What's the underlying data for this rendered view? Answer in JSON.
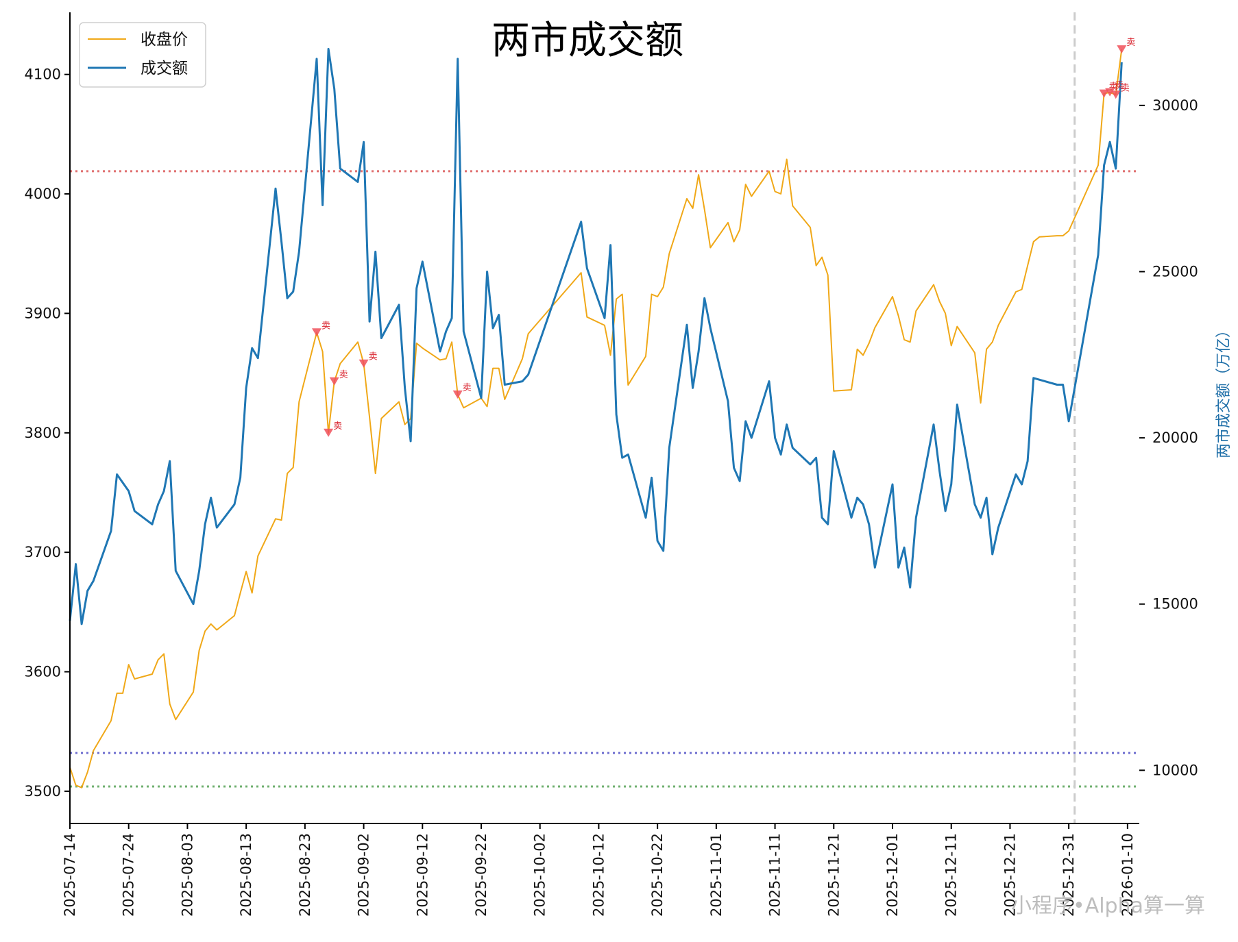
{
  "chart_data": {
    "type": "line",
    "title": "两市成交额",
    "ylabel_right": "两市成交额（万亿）",
    "watermark": "小程序•Alpha算一算",
    "legend": {
      "position": "top-left",
      "items": [
        {
          "label": "收盘价",
          "color": "#f0a818"
        },
        {
          "label": "成交额",
          "color": "#1f77b4"
        }
      ]
    },
    "x_range": [
      "2025-07-14",
      "2026-01-12"
    ],
    "x_ticks": [
      "2025-07-14",
      "2025-07-24",
      "2025-08-03",
      "2025-08-13",
      "2025-08-23",
      "2025-09-02",
      "2025-09-12",
      "2025-09-22",
      "2025-10-02",
      "2025-10-12",
      "2025-10-22",
      "2025-11-01",
      "2025-11-11",
      "2025-11-21",
      "2025-12-01",
      "2025-12-11",
      "2025-12-21",
      "2025-12-31",
      "2026-01-10"
    ],
    "y_left": {
      "range": [
        3473,
        4152
      ],
      "ticks": [
        3500,
        3600,
        3700,
        3800,
        3900,
        4000,
        4100
      ]
    },
    "y_right": {
      "range": [
        8400,
        32800
      ],
      "ticks": [
        10000,
        15000,
        20000,
        25000,
        30000
      ]
    },
    "reference_lines": [
      {
        "axis": "left",
        "value": 4019,
        "color": "#e07070",
        "style": "dotted"
      },
      {
        "axis": "left",
        "value": 3532,
        "color": "#7070d0",
        "style": "dotted"
      },
      {
        "axis": "left",
        "value": 3504,
        "color": "#70b070",
        "style": "dotted"
      },
      {
        "axis": "x",
        "value": "2026-01-01",
        "color": "#cccccc",
        "style": "dashed"
      }
    ],
    "series": [
      {
        "name": "收盘价",
        "axis": "left",
        "color": "#f0a818",
        "points": [
          [
            "2025-07-14",
            3520
          ],
          [
            "2025-07-15",
            3505
          ],
          [
            "2025-07-16",
            3503
          ],
          [
            "2025-07-17",
            3516
          ],
          [
            "2025-07-18",
            3534
          ],
          [
            "2025-07-21",
            3559
          ],
          [
            "2025-07-22",
            3582
          ],
          [
            "2025-07-23",
            3582
          ],
          [
            "2025-07-24",
            3606
          ],
          [
            "2025-07-25",
            3594
          ],
          [
            "2025-07-28",
            3598
          ],
          [
            "2025-07-29",
            3610
          ],
          [
            "2025-07-30",
            3615
          ],
          [
            "2025-07-31",
            3573
          ],
          [
            "2025-08-01",
            3560
          ],
          [
            "2025-08-04",
            3583
          ],
          [
            "2025-08-05",
            3618
          ],
          [
            "2025-08-06",
            3634
          ],
          [
            "2025-08-07",
            3640
          ],
          [
            "2025-08-08",
            3635
          ],
          [
            "2025-08-11",
            3647
          ],
          [
            "2025-08-12",
            3666
          ],
          [
            "2025-08-13",
            3684
          ],
          [
            "2025-08-14",
            3666
          ],
          [
            "2025-08-15",
            3697
          ],
          [
            "2025-08-18",
            3728
          ],
          [
            "2025-08-19",
            3727
          ],
          [
            "2025-08-20",
            3766
          ],
          [
            "2025-08-21",
            3771
          ],
          [
            "2025-08-22",
            3826
          ],
          [
            "2025-08-25",
            3884
          ],
          [
            "2025-08-26",
            3868
          ],
          [
            "2025-08-27",
            3800
          ],
          [
            "2025-08-28",
            3843
          ],
          [
            "2025-08-29",
            3858
          ],
          [
            "2025-09-01",
            3876
          ],
          [
            "2025-09-02",
            3858
          ],
          [
            "2025-09-03",
            3813
          ],
          [
            "2025-09-04",
            3766
          ],
          [
            "2025-09-05",
            3812
          ],
          [
            "2025-09-08",
            3826
          ],
          [
            "2025-09-09",
            3807
          ],
          [
            "2025-09-10",
            3812
          ],
          [
            "2025-09-11",
            3875
          ],
          [
            "2025-09-12",
            3871
          ],
          [
            "2025-09-15",
            3861
          ],
          [
            "2025-09-16",
            3862
          ],
          [
            "2025-09-17",
            3876
          ],
          [
            "2025-09-18",
            3832
          ],
          [
            "2025-09-19",
            3821
          ],
          [
            "2025-09-22",
            3829
          ],
          [
            "2025-09-23",
            3822
          ],
          [
            "2025-09-24",
            3854
          ],
          [
            "2025-09-25",
            3854
          ],
          [
            "2025-09-26",
            3828
          ],
          [
            "2025-09-29",
            3862
          ],
          [
            "2025-09-30",
            3883
          ],
          [
            "2025-10-09",
            3934
          ],
          [
            "2025-10-10",
            3897
          ],
          [
            "2025-10-13",
            3890
          ],
          [
            "2025-10-14",
            3865
          ],
          [
            "2025-10-15",
            3912
          ],
          [
            "2025-10-16",
            3916
          ],
          [
            "2025-10-17",
            3840
          ],
          [
            "2025-10-20",
            3864
          ],
          [
            "2025-10-21",
            3916
          ],
          [
            "2025-10-22",
            3914
          ],
          [
            "2025-10-23",
            3922
          ],
          [
            "2025-10-24",
            3950
          ],
          [
            "2025-10-27",
            3996
          ],
          [
            "2025-10-28",
            3988
          ],
          [
            "2025-10-29",
            4016
          ],
          [
            "2025-10-30",
            3987
          ],
          [
            "2025-10-31",
            3955
          ],
          [
            "2025-11-03",
            3976
          ],
          [
            "2025-11-04",
            3960
          ],
          [
            "2025-11-05",
            3970
          ],
          [
            "2025-11-06",
            4008
          ],
          [
            "2025-11-07",
            3998
          ],
          [
            "2025-11-10",
            4019
          ],
          [
            "2025-11-11",
            4002
          ],
          [
            "2025-11-12",
            4000
          ],
          [
            "2025-11-13",
            4029
          ],
          [
            "2025-11-14",
            3990
          ],
          [
            "2025-11-17",
            3972
          ],
          [
            "2025-11-18",
            3940
          ],
          [
            "2025-11-19",
            3947
          ],
          [
            "2025-11-20",
            3932
          ],
          [
            "2025-11-21",
            3835
          ],
          [
            "2025-11-24",
            3836
          ],
          [
            "2025-11-25",
            3870
          ],
          [
            "2025-11-26",
            3865
          ],
          [
            "2025-11-27",
            3875
          ],
          [
            "2025-11-28",
            3888
          ],
          [
            "2025-12-01",
            3914
          ],
          [
            "2025-12-02",
            3898
          ],
          [
            "2025-12-03",
            3878
          ],
          [
            "2025-12-04",
            3876
          ],
          [
            "2025-12-05",
            3902
          ],
          [
            "2025-12-08",
            3924
          ],
          [
            "2025-12-09",
            3910
          ],
          [
            "2025-12-10",
            3900
          ],
          [
            "2025-12-11",
            3873
          ],
          [
            "2025-12-12",
            3889
          ],
          [
            "2025-12-15",
            3867
          ],
          [
            "2025-12-16",
            3825
          ],
          [
            "2025-12-17",
            3870
          ],
          [
            "2025-12-18",
            3876
          ],
          [
            "2025-12-19",
            3890
          ],
          [
            "2025-12-22",
            3918
          ],
          [
            "2025-12-23",
            3920
          ],
          [
            "2025-12-24",
            3940
          ],
          [
            "2025-12-25",
            3960
          ],
          [
            "2025-12-26",
            3964
          ],
          [
            "2025-12-29",
            3965
          ],
          [
            "2025-12-30",
            3965
          ],
          [
            "2025-12-31",
            3969
          ],
          [
            "2026-01-05",
            4024
          ],
          [
            "2026-01-06",
            4084
          ],
          [
            "2026-01-07",
            4085
          ],
          [
            "2026-01-08",
            4083
          ],
          [
            "2026-01-09",
            4121
          ]
        ]
      },
      {
        "name": "成交额",
        "axis": "right",
        "color": "#1f77b4",
        "points": [
          [
            "2025-07-14",
            14500
          ],
          [
            "2025-07-15",
            16200
          ],
          [
            "2025-07-16",
            14400
          ],
          [
            "2025-07-17",
            15400
          ],
          [
            "2025-07-18",
            15700
          ],
          [
            "2025-07-21",
            17200
          ],
          [
            "2025-07-22",
            18900
          ],
          [
            "2025-07-24",
            18400
          ],
          [
            "2025-07-25",
            17800
          ],
          [
            "2025-07-28",
            17400
          ],
          [
            "2025-07-29",
            18000
          ],
          [
            "2025-07-30",
            18400
          ],
          [
            "2025-07-31",
            19300
          ],
          [
            "2025-08-01",
            16000
          ],
          [
            "2025-08-04",
            15000
          ],
          [
            "2025-08-05",
            16000
          ],
          [
            "2025-08-06",
            17400
          ],
          [
            "2025-08-07",
            18200
          ],
          [
            "2025-08-08",
            17300
          ],
          [
            "2025-08-11",
            18000
          ],
          [
            "2025-08-12",
            18800
          ],
          [
            "2025-08-13",
            21500
          ],
          [
            "2025-08-14",
            22700
          ],
          [
            "2025-08-15",
            22400
          ],
          [
            "2025-08-18",
            27500
          ],
          [
            "2025-08-19",
            25900
          ],
          [
            "2025-08-20",
            24200
          ],
          [
            "2025-08-21",
            24400
          ],
          [
            "2025-08-22",
            25600
          ],
          [
            "2025-08-25",
            31400
          ],
          [
            "2025-08-26",
            27000
          ],
          [
            "2025-08-27",
            31700
          ],
          [
            "2025-08-28",
            30500
          ],
          [
            "2025-08-29",
            28100
          ],
          [
            "2025-09-01",
            27700
          ],
          [
            "2025-09-02",
            28900
          ],
          [
            "2025-09-03",
            23500
          ],
          [
            "2025-09-04",
            25600
          ],
          [
            "2025-09-05",
            23000
          ],
          [
            "2025-09-08",
            24000
          ],
          [
            "2025-09-09",
            21500
          ],
          [
            "2025-09-10",
            19900
          ],
          [
            "2025-09-11",
            24500
          ],
          [
            "2025-09-12",
            25300
          ],
          [
            "2025-09-15",
            22600
          ],
          [
            "2025-09-16",
            23200
          ],
          [
            "2025-09-17",
            23600
          ],
          [
            "2025-09-18",
            31400
          ],
          [
            "2025-09-19",
            23200
          ],
          [
            "2025-09-22",
            21200
          ],
          [
            "2025-09-23",
            25000
          ],
          [
            "2025-09-24",
            23300
          ],
          [
            "2025-09-25",
            23700
          ],
          [
            "2025-09-26",
            21600
          ],
          [
            "2025-09-29",
            21700
          ],
          [
            "2025-09-30",
            21900
          ],
          [
            "2025-10-09",
            26500
          ],
          [
            "2025-10-10",
            25100
          ],
          [
            "2025-10-13",
            23600
          ],
          [
            "2025-10-14",
            25800
          ],
          [
            "2025-10-15",
            20700
          ],
          [
            "2025-10-16",
            19400
          ],
          [
            "2025-10-17",
            19500
          ],
          [
            "2025-10-20",
            17600
          ],
          [
            "2025-10-21",
            18800
          ],
          [
            "2025-10-22",
            16900
          ],
          [
            "2025-10-23",
            16600
          ],
          [
            "2025-10-24",
            19700
          ],
          [
            "2025-10-27",
            23400
          ],
          [
            "2025-10-28",
            21500
          ],
          [
            "2025-10-29",
            22600
          ],
          [
            "2025-10-30",
            24200
          ],
          [
            "2025-10-31",
            23300
          ],
          [
            "2025-11-03",
            21100
          ],
          [
            "2025-11-04",
            19100
          ],
          [
            "2025-11-05",
            18700
          ],
          [
            "2025-11-06",
            20500
          ],
          [
            "2025-11-07",
            20000
          ],
          [
            "2025-11-10",
            21700
          ],
          [
            "2025-11-11",
            20000
          ],
          [
            "2025-11-12",
            19500
          ],
          [
            "2025-11-13",
            20400
          ],
          [
            "2025-11-14",
            19700
          ],
          [
            "2025-11-17",
            19200
          ],
          [
            "2025-11-18",
            19400
          ],
          [
            "2025-11-19",
            17600
          ],
          [
            "2025-11-20",
            17400
          ],
          [
            "2025-11-21",
            19600
          ],
          [
            "2025-11-24",
            17600
          ],
          [
            "2025-11-25",
            18200
          ],
          [
            "2025-11-26",
            18000
          ],
          [
            "2025-11-27",
            17400
          ],
          [
            "2025-11-28",
            16100
          ],
          [
            "2025-12-01",
            18600
          ],
          [
            "2025-12-02",
            16100
          ],
          [
            "2025-12-03",
            16700
          ],
          [
            "2025-12-04",
            15500
          ],
          [
            "2025-12-05",
            17600
          ],
          [
            "2025-12-08",
            20400
          ],
          [
            "2025-12-09",
            19000
          ],
          [
            "2025-12-10",
            17800
          ],
          [
            "2025-12-11",
            18600
          ],
          [
            "2025-12-12",
            21000
          ],
          [
            "2025-12-15",
            18000
          ],
          [
            "2025-12-16",
            17600
          ],
          [
            "2025-12-17",
            18200
          ],
          [
            "2025-12-18",
            16500
          ],
          [
            "2025-12-19",
            17300
          ],
          [
            "2025-12-22",
            18900
          ],
          [
            "2025-12-23",
            18600
          ],
          [
            "2025-12-24",
            19300
          ],
          [
            "2025-12-25",
            21800
          ],
          [
            "2025-12-29",
            21600
          ],
          [
            "2025-12-30",
            21600
          ],
          [
            "2025-12-31",
            20500
          ],
          [
            "2026-01-05",
            25500
          ],
          [
            "2026-01-06",
            28200
          ],
          [
            "2026-01-07",
            28900
          ],
          [
            "2026-01-08",
            28100
          ],
          [
            "2026-01-09",
            31300
          ]
        ]
      }
    ],
    "sell_signals": [
      {
        "date": "2025-08-25",
        "price": 3884,
        "label": "卖"
      },
      {
        "date": "2025-08-27",
        "price": 3800,
        "label": "卖"
      },
      {
        "date": "2025-08-28",
        "price": 3843,
        "label": "卖"
      },
      {
        "date": "2025-09-02",
        "price": 3858,
        "label": "卖"
      },
      {
        "date": "2025-09-18",
        "price": 3832,
        "label": "卖"
      },
      {
        "date": "2026-01-06",
        "price": 4084,
        "label": "卖"
      },
      {
        "date": "2026-01-07",
        "price": 4085,
        "label": "卖"
      },
      {
        "date": "2026-01-08",
        "price": 4083,
        "label": "卖"
      },
      {
        "date": "2026-01-09",
        "price": 4121,
        "label": "卖"
      }
    ]
  }
}
